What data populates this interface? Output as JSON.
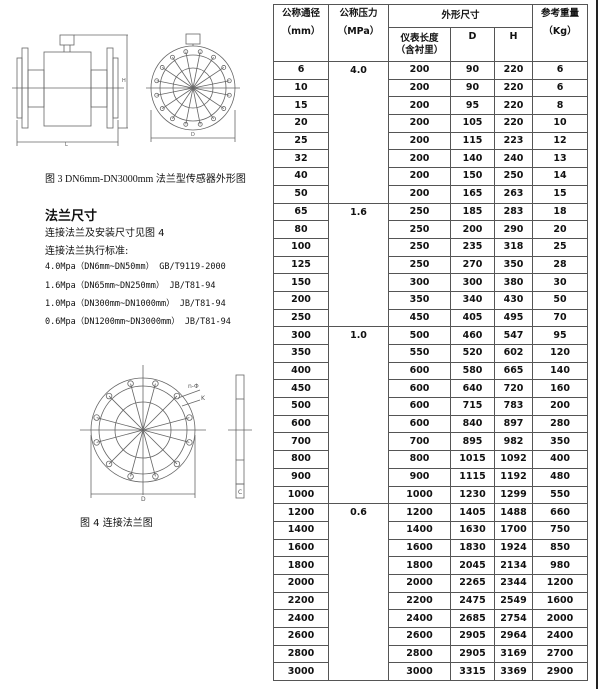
{
  "figure3": {
    "caption": "图 3    DN6mm-DN3000mm 法兰型传感器外形图",
    "labels": {
      "L": "L",
      "H": "H",
      "D": "D"
    }
  },
  "flange_section": {
    "heading": "法兰尺寸",
    "line1": "连接法兰及安装尺寸见图 4",
    "line2": "连接法兰执行标准:",
    "standards": [
      "4.0Mpa（DN6mm~DN50mm）   GB/T9119-2000",
      "1.6Mpa（DN65mm~DN250mm）   JB/T81-94",
      "1.0Mpa（DN300mm~DN1000mm）   JB/T81-94",
      "0.6Mpa（DN1200mm~DN3000mm）   JB/T81-94"
    ]
  },
  "figure4": {
    "caption": "图 4   连接法兰图",
    "labels": {
      "n_phi": "n-Φ",
      "K": "K",
      "D": "D",
      "C": "C"
    }
  },
  "table": {
    "headers": {
      "dn": "公称通径",
      "dn_unit": "（mm）",
      "pressure": "公称压力",
      "pressure_unit": "（MPa）",
      "dims": "外形尺寸",
      "length": "仪表长度（含衬里）",
      "D": "D",
      "H": "H",
      "weight": "参考重量",
      "weight_unit": "（Kg）"
    },
    "groups": [
      {
        "pressure": "4.0",
        "rows": [
          [
            "6",
            "200",
            "90",
            "220",
            "6"
          ],
          [
            "10",
            "200",
            "90",
            "220",
            "6"
          ],
          [
            "15",
            "200",
            "95",
            "220",
            "8"
          ],
          [
            "20",
            "200",
            "105",
            "220",
            "10"
          ],
          [
            "25",
            "200",
            "115",
            "223",
            "12"
          ],
          [
            "32",
            "200",
            "140",
            "240",
            "13"
          ],
          [
            "40",
            "200",
            "150",
            "250",
            "14"
          ],
          [
            "50",
            "200",
            "165",
            "263",
            "15"
          ]
        ]
      },
      {
        "pressure": "1.6",
        "rows": [
          [
            "65",
            "250",
            "185",
            "283",
            "18"
          ],
          [
            "80",
            "250",
            "200",
            "290",
            "20"
          ],
          [
            "100",
            "250",
            "235",
            "318",
            "25"
          ],
          [
            "125",
            "250",
            "270",
            "350",
            "28"
          ],
          [
            "150",
            "300",
            "300",
            "380",
            "30"
          ],
          [
            "200",
            "350",
            "340",
            "430",
            "50"
          ],
          [
            "250",
            "450",
            "405",
            "495",
            "70"
          ]
        ]
      },
      {
        "pressure": "1.0",
        "rows": [
          [
            "300",
            "500",
            "460",
            "547",
            "95"
          ],
          [
            "350",
            "550",
            "520",
            "602",
            "120"
          ],
          [
            "400",
            "600",
            "580",
            "665",
            "140"
          ],
          [
            "450",
            "600",
            "640",
            "720",
            "160"
          ],
          [
            "500",
            "600",
            "715",
            "783",
            "200"
          ],
          [
            "600",
            "600",
            "840",
            "897",
            "280"
          ],
          [
            "700",
            "700",
            "895",
            "982",
            "350"
          ],
          [
            "800",
            "800",
            "1015",
            "1092",
            "400"
          ],
          [
            "900",
            "900",
            "1115",
            "1192",
            "480"
          ],
          [
            "1000",
            "1000",
            "1230",
            "1299",
            "550"
          ]
        ]
      },
      {
        "pressure": "0.6",
        "rows": [
          [
            "1200",
            "1200",
            "1405",
            "1488",
            "660"
          ],
          [
            "1400",
            "1400",
            "1630",
            "1700",
            "750"
          ],
          [
            "1600",
            "1600",
            "1830",
            "1924",
            "850"
          ],
          [
            "1800",
            "1800",
            "2045",
            "2134",
            "980"
          ],
          [
            "2000",
            "2000",
            "2265",
            "2344",
            "1200"
          ],
          [
            "2200",
            "2200",
            "2475",
            "2549",
            "1600"
          ],
          [
            "2400",
            "2400",
            "2685",
            "2754",
            "2000"
          ],
          [
            "2600",
            "2600",
            "2905",
            "2964",
            "2400"
          ],
          [
            "2800",
            "2800",
            "2905",
            "3169",
            "2700"
          ],
          [
            "3000",
            "3000",
            "3315",
            "3369",
            "2900"
          ]
        ]
      }
    ]
  }
}
